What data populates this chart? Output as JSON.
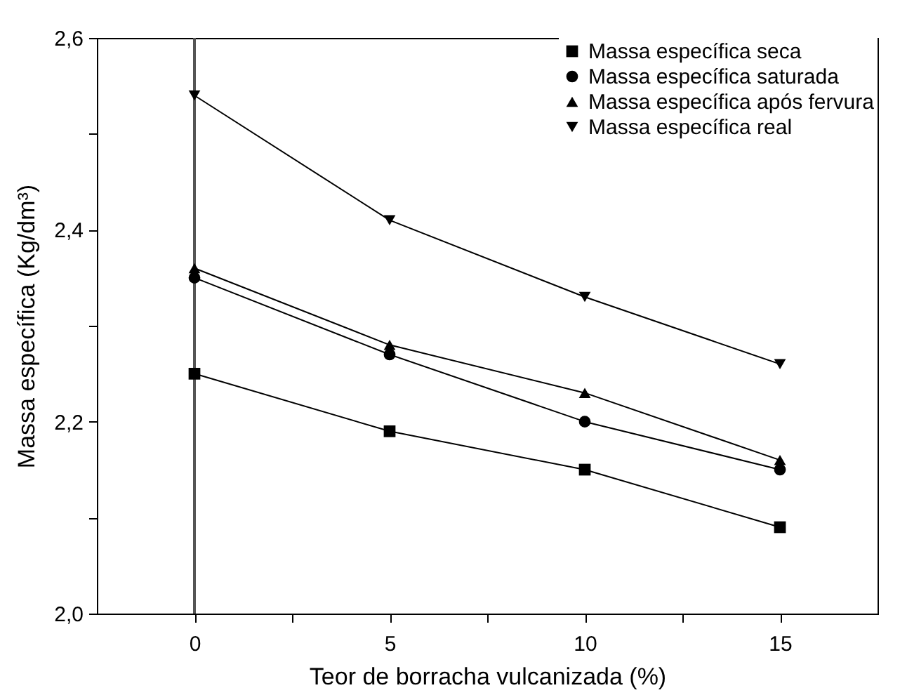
{
  "chart_data": {
    "type": "line",
    "xlabel": "Teor de borracha vulcanizada (%)",
    "ylabel": "Massa específica (Kg/dm³)",
    "x": [
      0,
      5,
      10,
      15
    ],
    "xlim": [
      -2.5,
      17.5
    ],
    "xticks": [
      0,
      {
        "value": 2.5,
        "label": null
      },
      5,
      {
        "value": 7.5,
        "label": null
      },
      10,
      {
        "value": 12.5,
        "label": null
      },
      15
    ],
    "ylim": [
      2.0,
      2.6
    ],
    "yticks": [
      {
        "value": 2.0,
        "label": "2,0"
      },
      {
        "value": 2.1,
        "label": null
      },
      {
        "value": 2.2,
        "label": "2,2"
      },
      {
        "value": 2.3,
        "label": null
      },
      {
        "value": 2.4,
        "label": "2,4"
      },
      {
        "value": 2.5,
        "label": null
      },
      {
        "value": 2.6,
        "label": "2,6"
      }
    ],
    "ref_lines": [
      {
        "axis": "x",
        "value": 0,
        "label": null,
        "color": "#555555"
      }
    ],
    "legend": "top right",
    "grid": false,
    "series": [
      {
        "name": "Massa específica seca",
        "color": "#000000",
        "marker": "square",
        "values": [
          2.25,
          2.19,
          2.15,
          2.09
        ]
      },
      {
        "name": "Massa específica saturada",
        "color": "#000000",
        "marker": "circle",
        "values": [
          2.35,
          2.27,
          2.2,
          2.15
        ]
      },
      {
        "name": "Massa específica após fervura",
        "color": "#000000",
        "marker": "triangle",
        "values": [
          2.36,
          2.28,
          2.23,
          2.16
        ]
      },
      {
        "name": "Massa específica real",
        "color": "#000000",
        "marker": "triangle-down",
        "values": [
          2.54,
          2.41,
          2.33,
          2.26
        ]
      }
    ]
  }
}
